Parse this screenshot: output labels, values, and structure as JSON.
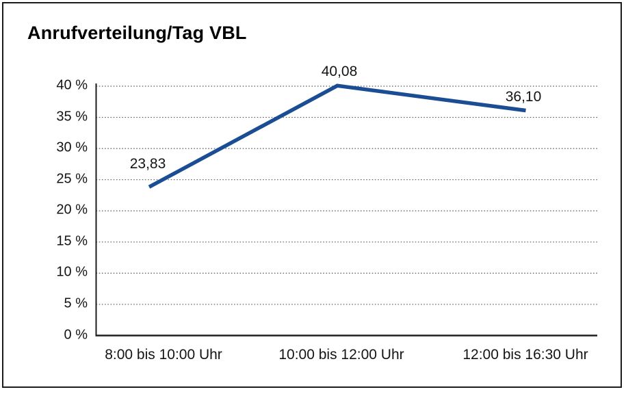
{
  "chart": {
    "title": "Anrufverteilung/Tag VBL"
  },
  "chart_data": {
    "type": "line",
    "title": "Anrufverteilung/Tag VBL",
    "categories": [
      "8:00 bis 10:00 Uhr",
      "10:00 bis 12:00 Uhr",
      "12:00 bis 16:30 Uhr"
    ],
    "values": [
      23.83,
      40.08,
      36.1
    ],
    "data_labels": [
      "23,83",
      "40,08",
      "36,10"
    ],
    "xlabel": "",
    "ylabel": "",
    "ylim": [
      0,
      40
    ],
    "yticks": [
      0,
      5,
      10,
      15,
      20,
      25,
      30,
      35,
      40
    ],
    "ytick_labels": [
      "0 %",
      "5 %",
      "10 %",
      "15 %",
      "20 %",
      "25 %",
      "30 %",
      "35 %",
      "40 %"
    ],
    "grid": "horizontal-dotted",
    "legend": "none",
    "line_color": "#1a4d94",
    "grid_color": "#5a5a5a",
    "axis_color": "#1e1e1e",
    "text_color": "#141414"
  }
}
